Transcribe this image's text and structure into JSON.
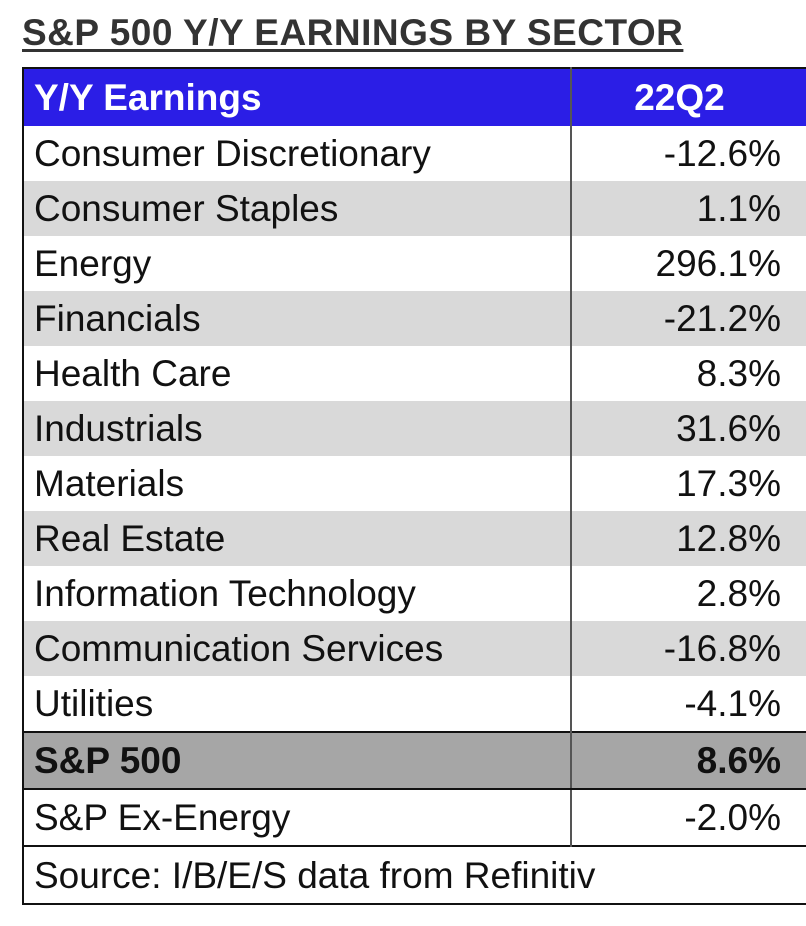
{
  "title": "S&P 500 Y/Y EARNINGS BY SECTOR",
  "colors": {
    "header_bg": "#2b1ee6",
    "header_text": "#ffffff",
    "shade_row": "#d9d9d9",
    "total_row": "#a6a6a6"
  },
  "chart_data": {
    "type": "table",
    "title": "S&P 500 Y/Y EARNINGS BY SECTOR",
    "columns": [
      "Y/Y Earnings",
      "22Q2"
    ],
    "rows": [
      {
        "sector": "Consumer Discretionary",
        "value": "-12.6%"
      },
      {
        "sector": "Consumer Staples",
        "value": "1.1%"
      },
      {
        "sector": "Energy",
        "value": "296.1%"
      },
      {
        "sector": "Financials",
        "value": "-21.2%"
      },
      {
        "sector": "Health Care",
        "value": "8.3%"
      },
      {
        "sector": "Industrials",
        "value": "31.6%"
      },
      {
        "sector": "Materials",
        "value": "17.3%"
      },
      {
        "sector": "Real Estate",
        "value": "12.8%"
      },
      {
        "sector": "Information Technology",
        "value": "2.8%"
      },
      {
        "sector": "Communication Services",
        "value": "-16.8%"
      },
      {
        "sector": "Utilities",
        "value": "-4.1%"
      }
    ],
    "total": {
      "sector": "S&P 500",
      "value": "8.6%"
    },
    "ex_energy": {
      "sector": "S&P Ex-Energy",
      "value": "-2.0%"
    },
    "source": "Source: I/B/E/S data from Refinitiv"
  }
}
